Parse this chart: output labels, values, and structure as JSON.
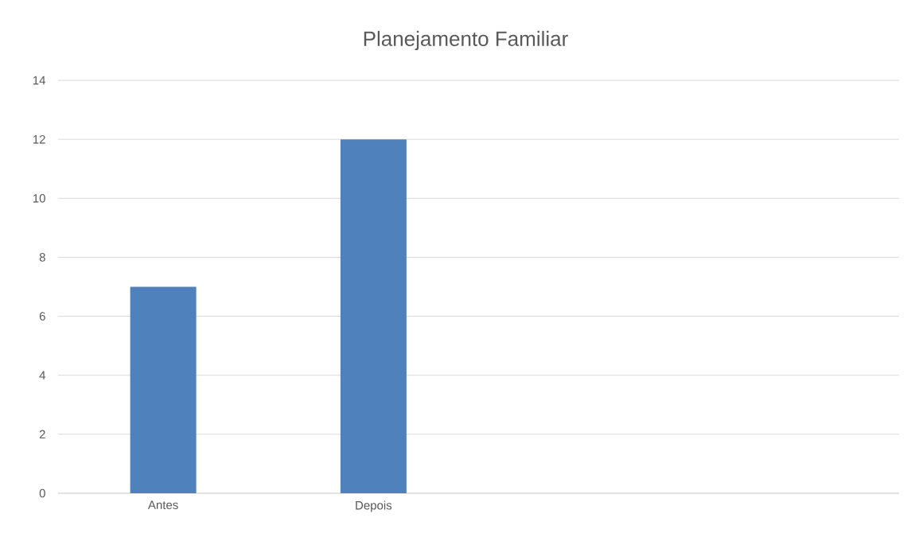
{
  "chart_data": {
    "type": "bar",
    "title": "Planejamento Familiar",
    "categories": [
      "Antes",
      "Depois",
      null,
      null
    ],
    "values": [
      7,
      12,
      null,
      null
    ],
    "color": "#4f81bd",
    "ylim": [
      0,
      14
    ],
    "yticks": [
      0,
      2,
      4,
      6,
      8,
      10,
      12,
      14
    ],
    "grid": "y"
  }
}
